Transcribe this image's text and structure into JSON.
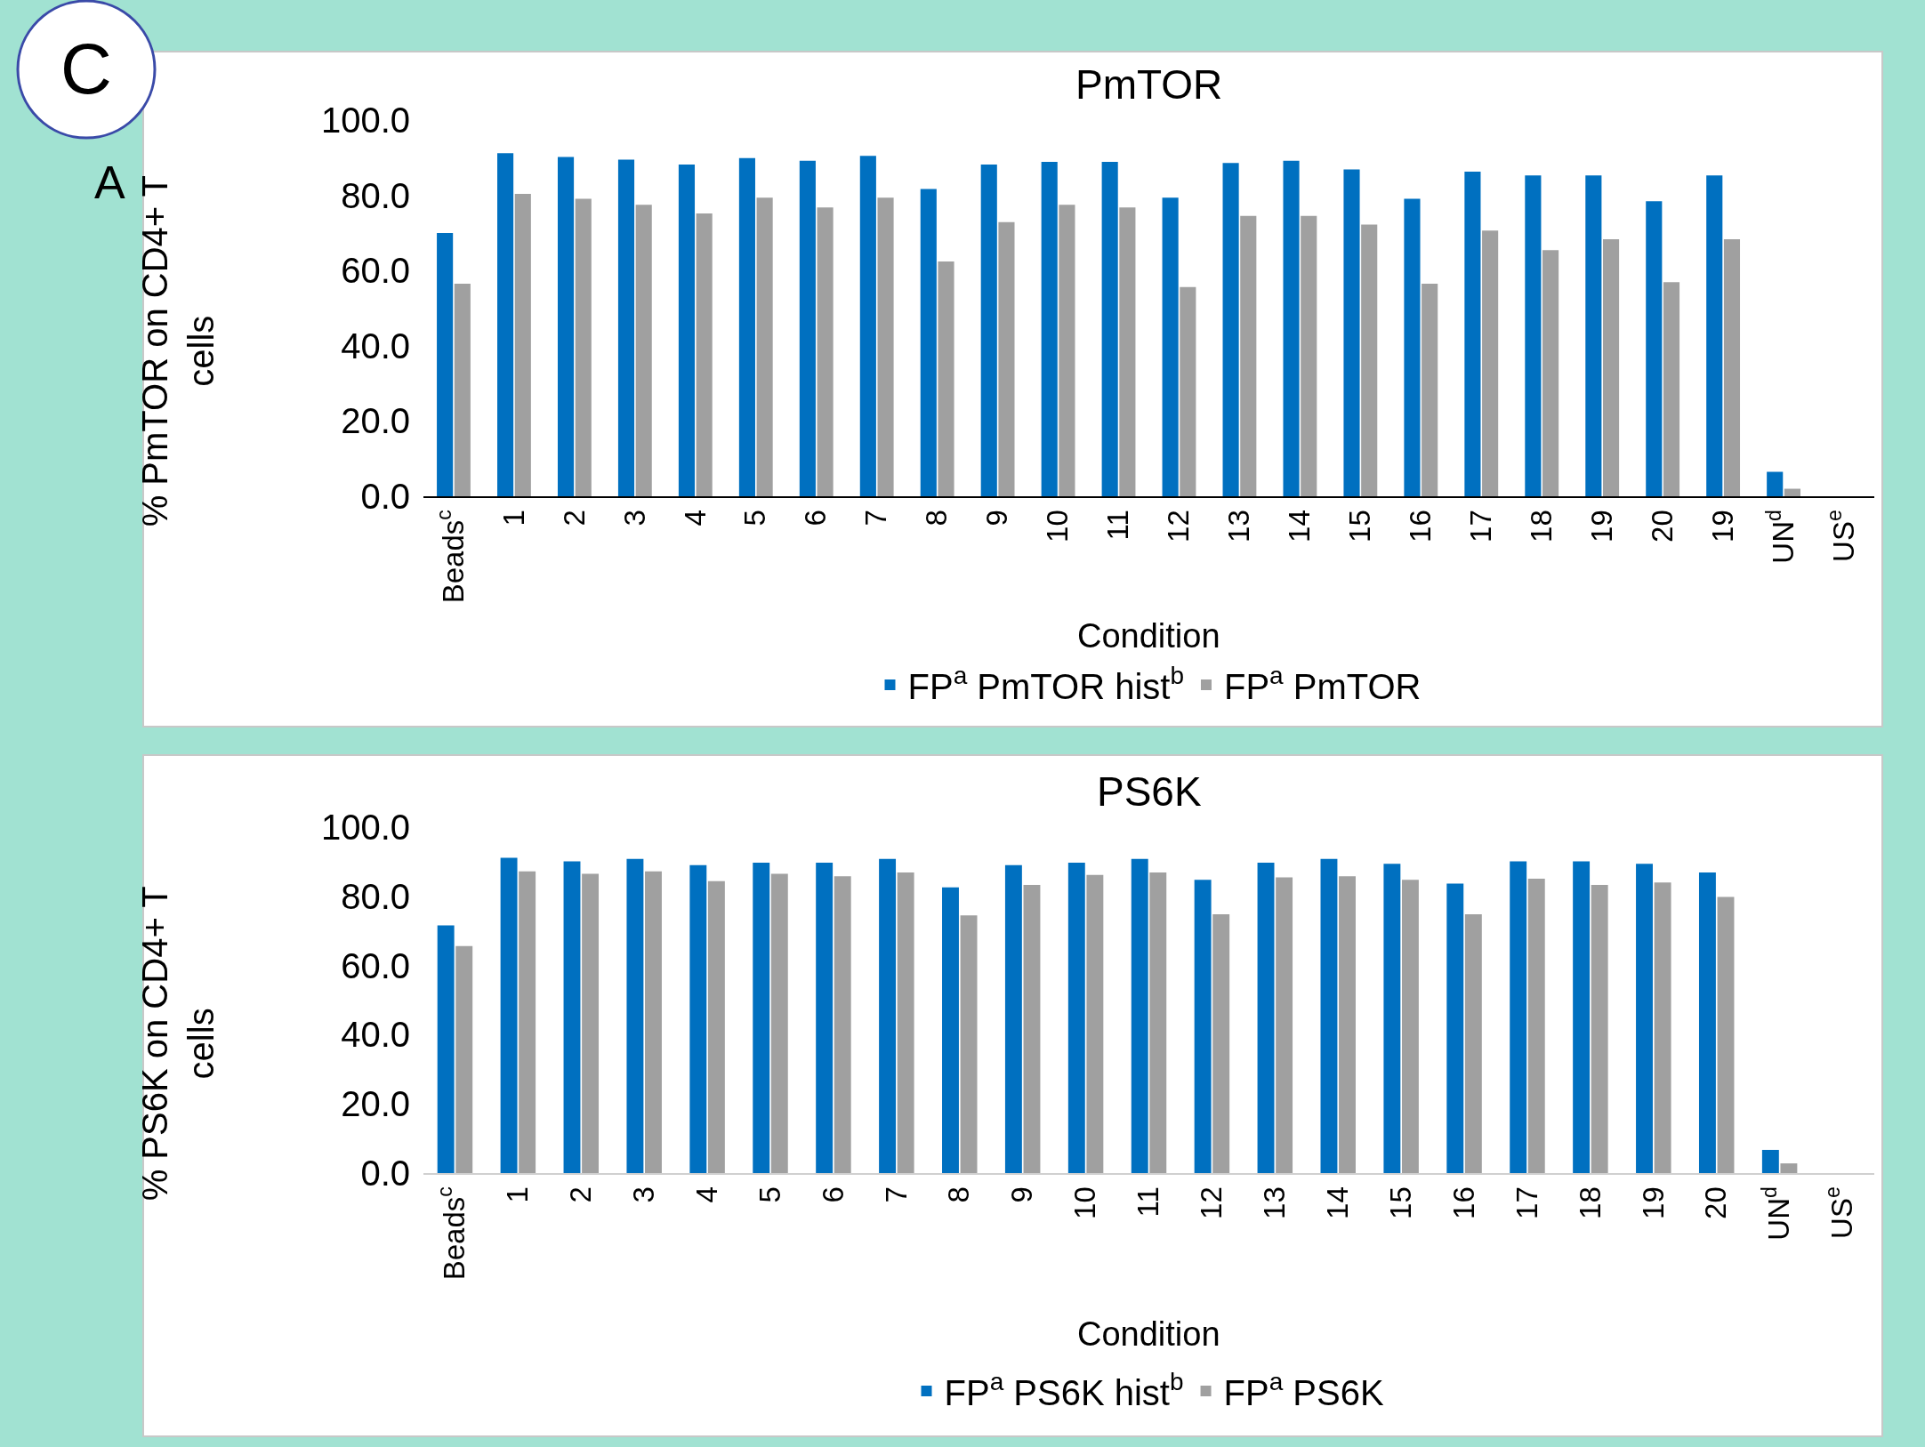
{
  "chart_data": [
    {
      "type": "bar",
      "title": "PmTOR",
      "xlabel": "Condition",
      "ylabel": "% PmTOR on CD4+ T cells",
      "categories": [
        "Beads$^{c}$",
        "1",
        "2",
        "3",
        "4",
        "5",
        "6",
        "7",
        "8",
        "9",
        "10",
        "11",
        "12",
        "13",
        "14",
        "15",
        "16",
        "17",
        "18",
        "19",
        "20",
        "19",
        "UN$^{d}$",
        "US$^{e}$"
      ],
      "series": [
        {
          "name": "FP$^{a}$ PmTOR hist$^{b}$",
          "color": "#0070c0",
          "values": [
            70.0,
            91.2,
            90.2,
            89.5,
            88.2,
            89.9,
            89.2,
            90.5,
            81.7,
            88.2,
            88.9,
            88.9,
            79.4,
            88.6,
            89.2,
            86.9,
            79.1,
            86.3,
            85.3,
            85.3,
            78.4,
            85.3,
            6.5,
            null
          ]
        },
        {
          "name": "FP$^{a}$ PmTOR",
          "color": "#a0a0a0",
          "values": [
            56.5,
            80.4,
            79.1,
            77.5,
            75.2,
            79.4,
            76.8,
            79.4,
            62.4,
            72.9,
            77.5,
            76.8,
            55.6,
            74.5,
            74.5,
            72.2,
            56.5,
            70.6,
            65.4,
            68.3,
            56.9,
            68.3,
            2.0,
            null
          ]
        }
      ],
      "ylim": [
        0,
        100
      ],
      "yticks": [
        {
          "value": 0,
          "label": "0.0"
        },
        {
          "value": 20,
          "label": "20.0"
        },
        {
          "value": 40,
          "label": "40.0"
        },
        {
          "value": 60,
          "label": "60.0"
        },
        {
          "value": 80,
          "label": "80.0"
        },
        {
          "value": 100,
          "label": "100.0"
        }
      ],
      "grid": false,
      "legend": "bottom",
      "annotations": [
        "C",
        "A"
      ]
    },
    {
      "type": "bar",
      "title": "PS6K",
      "xlabel": "Condition",
      "ylabel": "% PS6K on CD4+ T cells",
      "categories": [
        "Beads$^{c}$",
        "1",
        "2",
        "3",
        "4",
        "5",
        "6",
        "7",
        "8",
        "9",
        "10",
        "11",
        "12",
        "13",
        "14",
        "15",
        "16",
        "17",
        "18",
        "19",
        "20",
        "UN$^{d}$",
        "US$^{e}$"
      ],
      "series": [
        {
          "name": "FP$^{a}$ PS6K hist$^{b}$",
          "color": "#0070c0",
          "values": [
            71.6,
            91.1,
            90.1,
            90.8,
            89.0,
            89.7,
            89.7,
            90.8,
            82.6,
            89.0,
            89.7,
            90.8,
            84.8,
            89.7,
            90.8,
            89.4,
            83.7,
            90.1,
            90.1,
            89.4,
            86.9,
            6.7,
            null
          ]
        },
        {
          "name": "FP$^{a}$ PS6K",
          "color": "#a0a0a0",
          "values": [
            65.6,
            87.2,
            86.5,
            87.2,
            84.4,
            86.5,
            85.8,
            86.9,
            74.5,
            83.3,
            86.2,
            86.9,
            74.8,
            85.5,
            85.8,
            84.8,
            74.8,
            85.1,
            83.3,
            84.0,
            79.8,
            2.8,
            null
          ]
        }
      ],
      "ylim": [
        0,
        100
      ],
      "yticks": [
        {
          "value": 0,
          "label": "0.0"
        },
        {
          "value": 20,
          "label": "20.0"
        },
        {
          "value": 40,
          "label": "40.0"
        },
        {
          "value": 60,
          "label": "60.0"
        },
        {
          "value": 80,
          "label": "80.0"
        },
        {
          "value": 100,
          "label": "100.0"
        }
      ],
      "grid": false,
      "legend": "bottom"
    }
  ]
}
